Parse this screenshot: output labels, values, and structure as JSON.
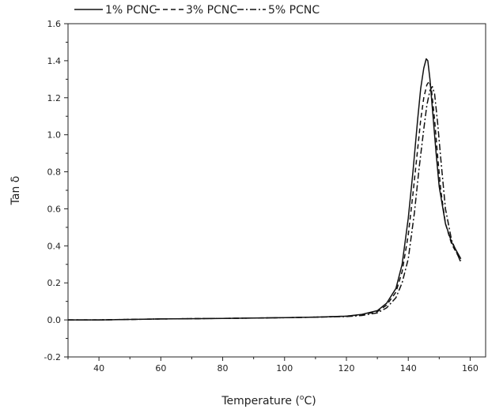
{
  "chart_data": {
    "type": "line",
    "title": "",
    "xlabel": "Temperature",
    "xlabel_sup": "o",
    "xlabel_unit": "C",
    "ylabel": "Tan δ",
    "xlim": [
      30,
      165
    ],
    "ylim": [
      -0.2,
      1.6
    ],
    "xticks": [
      40,
      60,
      80,
      100,
      120,
      140,
      160
    ],
    "yticks": [
      -0.2,
      0.0,
      0.2,
      0.4,
      0.6,
      0.8,
      1.0,
      1.2,
      1.4,
      1.6
    ],
    "ytick_labels": [
      "-0.2",
      "0.0",
      "0.2",
      "0.4",
      "0.6",
      "0.8",
      "1.0",
      "1.2",
      "1.4",
      "1.6"
    ],
    "xtick_labels": [
      "40",
      "60",
      "80",
      "100",
      "120",
      "140",
      "160"
    ],
    "grid": false,
    "legend_position": "top",
    "series": [
      {
        "name": "1% PCNC",
        "dash": "solid",
        "color": "#111111",
        "x": [
          30,
          40,
          60,
          80,
          100,
          110,
          120,
          125,
          130,
          133,
          136,
          138,
          140,
          141.5,
          143,
          144,
          145,
          145.8,
          146.3,
          147,
          148,
          149,
          150,
          152,
          154,
          156,
          157
        ],
        "y": [
          0.0,
          0.0,
          0.005,
          0.008,
          0.012,
          0.015,
          0.02,
          0.03,
          0.05,
          0.09,
          0.17,
          0.3,
          0.55,
          0.8,
          1.08,
          1.25,
          1.36,
          1.41,
          1.4,
          1.3,
          1.1,
          0.9,
          0.72,
          0.52,
          0.42,
          0.36,
          0.33
        ]
      },
      {
        "name": "3% PCNC",
        "dash": "dashed",
        "color": "#111111",
        "x": [
          30,
          40,
          60,
          80,
          100,
          110,
          120,
          125,
          130,
          133,
          136,
          138,
          140,
          141.5,
          143,
          144,
          145,
          146,
          146.8,
          147.5,
          148.5,
          149.5,
          150.5,
          152,
          154,
          156,
          157
        ],
        "y": [
          0.0,
          0.0,
          0.005,
          0.008,
          0.012,
          0.015,
          0.02,
          0.028,
          0.045,
          0.08,
          0.15,
          0.26,
          0.46,
          0.68,
          0.92,
          1.08,
          1.2,
          1.27,
          1.29,
          1.24,
          1.08,
          0.88,
          0.7,
          0.52,
          0.41,
          0.35,
          0.32
        ]
      },
      {
        "name": "5% PCNC",
        "dash": "dashdot",
        "color": "#111111",
        "x": [
          30,
          40,
          60,
          80,
          100,
          110,
          120,
          125,
          130,
          133,
          136,
          138,
          140,
          142,
          143.5,
          145,
          146,
          147,
          147.8,
          148.5,
          149.5,
          150.5,
          152,
          154,
          156,
          157
        ],
        "y": [
          0.0,
          0.0,
          0.005,
          0.008,
          0.012,
          0.015,
          0.018,
          0.024,
          0.038,
          0.065,
          0.12,
          0.2,
          0.33,
          0.58,
          0.82,
          1.03,
          1.16,
          1.24,
          1.26,
          1.22,
          1.06,
          0.87,
          0.6,
          0.43,
          0.35,
          0.31
        ]
      }
    ]
  }
}
